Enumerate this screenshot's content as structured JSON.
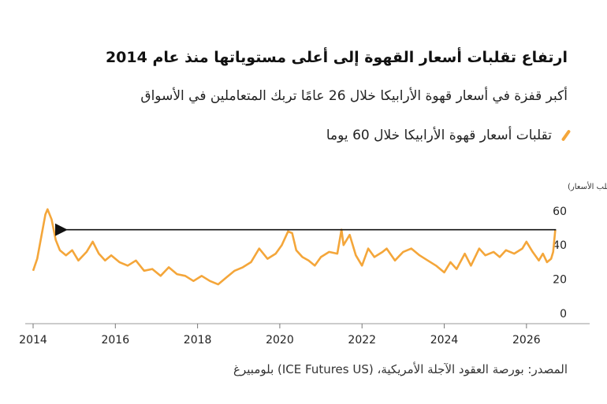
{
  "header": {
    "title": "ارتفاع تقلبات أسعار القهوة إلى أعلى مستوياتها منذ عام 2014",
    "subtitle": "أكبر قفزة في أسعار قهوة الأرابيكا خلال 26 عامًا تربك المتعاملين في الأسواق"
  },
  "legend": {
    "label": "تقلبات أسعار قهوة الأرابيكا خلال 60 يوما",
    "color": "#f4a63a"
  },
  "source": "المصدر: بورصة العقود الآجلة الأمريكية، (ICE Futures US) بلومبيرغ",
  "chart_data": {
    "type": "line",
    "ylabel": "(مؤشر تقلب الأسعار)",
    "ylim": [
      0,
      65
    ],
    "xlim": [
      2014,
      2027
    ],
    "y_ticks": [
      0,
      20,
      40,
      60
    ],
    "x_ticks": [
      2014,
      2016,
      2018,
      2020,
      2022,
      2024,
      2026
    ],
    "grid": "none",
    "annotation": "arrow pointing from latest value back to 2014 peak",
    "series": [
      {
        "color": "#f4a63a",
        "points": [
          [
            2014.0,
            25
          ],
          [
            2014.1,
            32
          ],
          [
            2014.2,
            45
          ],
          [
            2014.3,
            58
          ],
          [
            2014.35,
            61
          ],
          [
            2014.45,
            55
          ],
          [
            2014.55,
            43
          ],
          [
            2014.65,
            37
          ],
          [
            2014.8,
            34
          ],
          [
            2014.95,
            37
          ],
          [
            2015.1,
            31
          ],
          [
            2015.3,
            36
          ],
          [
            2015.45,
            42
          ],
          [
            2015.6,
            35
          ],
          [
            2015.75,
            31
          ],
          [
            2015.9,
            34
          ],
          [
            2016.1,
            30
          ],
          [
            2016.3,
            28
          ],
          [
            2016.5,
            31
          ],
          [
            2016.7,
            25
          ],
          [
            2016.9,
            26
          ],
          [
            2017.1,
            22
          ],
          [
            2017.3,
            27
          ],
          [
            2017.5,
            23
          ],
          [
            2017.7,
            22
          ],
          [
            2017.9,
            19
          ],
          [
            2018.1,
            22
          ],
          [
            2018.3,
            19
          ],
          [
            2018.5,
            17
          ],
          [
            2018.7,
            21
          ],
          [
            2018.9,
            25
          ],
          [
            2019.1,
            27
          ],
          [
            2019.3,
            30
          ],
          [
            2019.5,
            38
          ],
          [
            2019.7,
            32
          ],
          [
            2019.9,
            35
          ],
          [
            2020.05,
            40
          ],
          [
            2020.2,
            48
          ],
          [
            2020.3,
            47
          ],
          [
            2020.4,
            37
          ],
          [
            2020.55,
            33
          ],
          [
            2020.7,
            31
          ],
          [
            2020.85,
            28
          ],
          [
            2021.0,
            33
          ],
          [
            2021.2,
            36
          ],
          [
            2021.4,
            35
          ],
          [
            2021.5,
            49
          ],
          [
            2021.55,
            40
          ],
          [
            2021.7,
            46
          ],
          [
            2021.85,
            34
          ],
          [
            2022.0,
            28
          ],
          [
            2022.15,
            38
          ],
          [
            2022.3,
            33
          ],
          [
            2022.5,
            36
          ],
          [
            2022.6,
            38
          ],
          [
            2022.8,
            31
          ],
          [
            2023.0,
            36
          ],
          [
            2023.2,
            38
          ],
          [
            2023.4,
            34
          ],
          [
            2023.6,
            31
          ],
          [
            2023.8,
            28
          ],
          [
            2024.0,
            24
          ],
          [
            2024.15,
            30
          ],
          [
            2024.3,
            26
          ],
          [
            2024.5,
            35
          ],
          [
            2024.65,
            28
          ],
          [
            2024.85,
            38
          ],
          [
            2025.0,
            34
          ],
          [
            2025.2,
            36
          ],
          [
            2025.35,
            33
          ],
          [
            2025.5,
            37
          ],
          [
            2025.7,
            35
          ],
          [
            2025.9,
            38
          ],
          [
            2026.0,
            42
          ],
          [
            2026.15,
            36
          ],
          [
            2026.3,
            31
          ],
          [
            2026.4,
            35
          ],
          [
            2026.5,
            30
          ],
          [
            2026.6,
            32
          ],
          [
            2026.65,
            36
          ],
          [
            2026.7,
            49
          ]
        ]
      }
    ]
  }
}
